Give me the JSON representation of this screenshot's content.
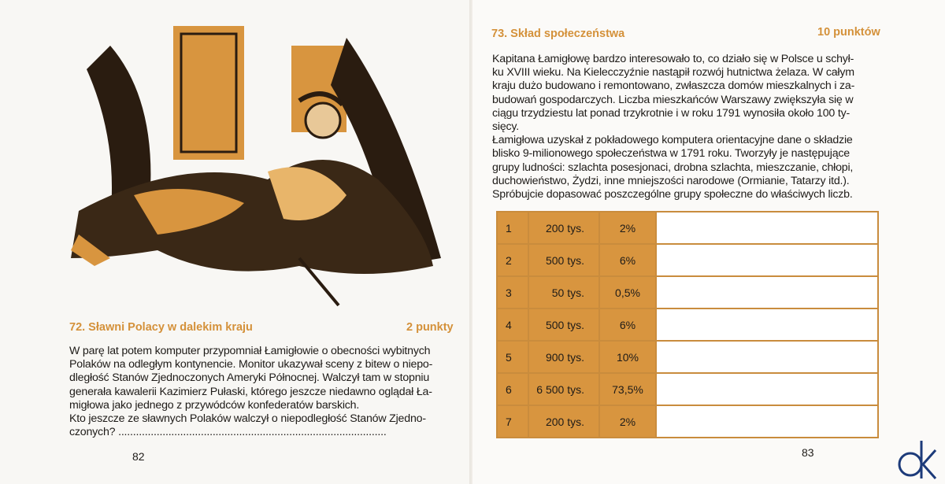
{
  "left": {
    "heading": "72. Sławni Polacy w dalekim kraju",
    "points": "2 punkty",
    "lines": [
      "W parę lat potem komputer przypomniał Łamigłowie o obecności wybitnych",
      "Polaków na odległym kontynencie. Monitor ukazywał sceny z bitew o niepo-",
      "dległość Stanów Zjednoczonych Ameryki Północnej. Walczył tam w stopniu",
      "generała kawalerii Kazimierz Pułaski, którego jeszcze niedawno oglądał Ła-",
      "migłowa jako jednego z przywódców konfederatów barskich.",
      "Kto jeszcze ze sławnych Polaków walczył o niepodległość Stanów Zjedno-",
      "czonych? ..........................................................................................."
    ],
    "page_number": "82"
  },
  "right": {
    "heading": "73. Skład społeczeństwa",
    "points": "10 punktów",
    "lines": [
      "Kapitana Łamigłowę bardzo interesowało to, co działo się w Polsce u schył-",
      "ku XVIII wieku. Na Kielecczyźnie nastąpił rozwój hutnictwa żelaza. W całym",
      "kraju dużo budowano i remontowano, zwłaszcza domów mieszkalnych i za-",
      "budowań gospodarczych. Liczba mieszkańców Warszawy zwiększyła się w",
      "ciągu trzydziestu lat ponad trzykrotnie i w roku 1791 wynosiła około 100 ty-",
      "sięcy.",
      "Łamigłowa uzyskał z pokładowego komputera orientacyjne dane o składzie",
      "blisko 9-milionowego społeczeństwa w 1791 roku. Tworzyły je następujące",
      "grupy ludności: szlachta posesjonaci, drobna szlachta, mieszczanie, chłopi,",
      "duchowieństwo, Żydzi, inne mniejszości narodowe (Ormianie, Tatarzy itd.).",
      "Spróbujcie dopasować poszczególne grupy społeczne do właściwych liczb."
    ],
    "table": [
      {
        "n": "1",
        "count": "200 tys.",
        "pct": "2%",
        "answer": ""
      },
      {
        "n": "2",
        "count": "500 tys.",
        "pct": "6%",
        "answer": ""
      },
      {
        "n": "3",
        "count": "50 tys.",
        "pct": "0,5%",
        "answer": ""
      },
      {
        "n": "4",
        "count": "500 tys.",
        "pct": "6%",
        "answer": ""
      },
      {
        "n": "5",
        "count": "900 tys.",
        "pct": "10%",
        "answer": ""
      },
      {
        "n": "6",
        "count": "6 500 tys.",
        "pct": "73,5%",
        "answer": ""
      },
      {
        "n": "7",
        "count": "200 tys.",
        "pct": "2%",
        "answer": ""
      }
    ],
    "page_number": "83"
  },
  "colors": {
    "accent": "#d4913a",
    "table_fill": "#d8953f",
    "table_border": "#c98c3d"
  },
  "logo": {
    "text": "dk"
  }
}
